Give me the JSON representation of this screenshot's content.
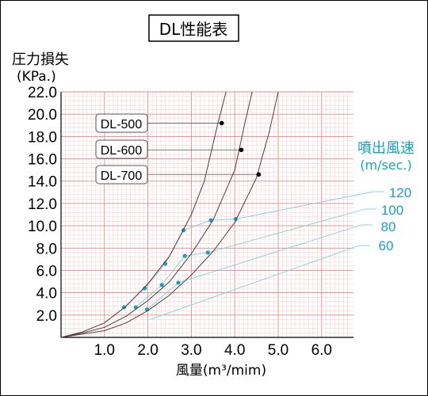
{
  "chart_data": {
    "type": "line",
    "title": "DL性能表",
    "ylabel": "圧力損失",
    "yunit": "(KPa.)",
    "xlabel": "風量(m³/mim)",
    "xlim": [
      0,
      6.5
    ],
    "ylim": [
      0,
      22
    ],
    "xticks": [
      "1.0",
      "2.0",
      "3.0",
      "4.0",
      "5.0",
      "6.0"
    ],
    "yticks": [
      "2.0",
      "4.0",
      "6.0",
      "8.0",
      "10.0",
      "12.0",
      "14.0",
      "16.0",
      "18.0",
      "20.0",
      "22.0"
    ],
    "grid": true,
    "series": [
      {
        "name": "DL-500",
        "x": [
          0,
          0.5,
          1.0,
          1.5,
          2.0,
          2.5,
          3.0,
          3.3,
          3.6,
          3.8
        ],
        "y": [
          0,
          0.5,
          1.3,
          2.8,
          4.8,
          7.3,
          11.0,
          14.0,
          19.0,
          22.0
        ],
        "marker": [
          3.7,
          19.2
        ]
      },
      {
        "name": "DL-600",
        "x": [
          0,
          0.5,
          1.0,
          1.5,
          2.0,
          2.5,
          3.0,
          3.5,
          4.0,
          4.25,
          4.4
        ],
        "y": [
          0,
          0.4,
          0.9,
          1.9,
          3.3,
          5.0,
          7.5,
          10.5,
          15.0,
          19.5,
          22.0
        ],
        "marker": [
          4.15,
          16.8
        ]
      },
      {
        "name": "DL-700",
        "x": [
          0,
          0.5,
          1.0,
          1.5,
          2.0,
          2.5,
          3.0,
          3.5,
          4.0,
          4.5,
          4.8,
          5.0
        ],
        "y": [
          0,
          0.3,
          0.6,
          1.3,
          2.4,
          3.8,
          5.6,
          7.7,
          10.3,
          14.3,
          18.5,
          22.0
        ],
        "marker": [
          4.55,
          14.6
        ]
      }
    ],
    "velocity_title": "噴出風速",
    "velocity_unit": "(m/sec.)",
    "velocity_lines": [
      {
        "label": "120",
        "points": [
          [
            1.45,
            2.7
          ],
          [
            1.93,
            4.4
          ],
          [
            2.4,
            6.6
          ],
          [
            2.82,
            9.6
          ],
          [
            3.45,
            10.5
          ],
          [
            4.02,
            10.6
          ]
        ]
      },
      {
        "label": "100",
        "points": [
          [
            1.72,
            2.7
          ],
          [
            2.32,
            4.7
          ],
          [
            2.85,
            7.3
          ],
          [
            3.38,
            7.6
          ]
        ]
      },
      {
        "label": "80",
        "points": [
          [
            1.98,
            2.5
          ],
          [
            2.7,
            4.9
          ]
        ]
      },
      {
        "label": "60",
        "points": []
      }
    ]
  }
}
